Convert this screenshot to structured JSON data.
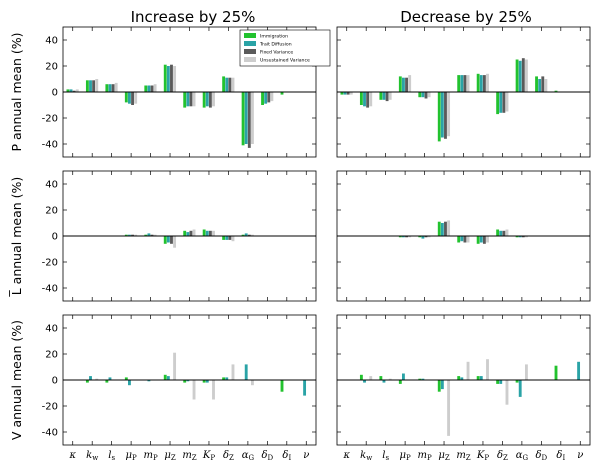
{
  "colors": {
    "Immigration": "#22c22e",
    "Trait Diffusion": "#2aa3a6",
    "Fixed Variance": "#5a5a5a",
    "Unsustained Variance": "#cdcdcd"
  },
  "chart_data": {
    "type": "bar",
    "column_titles": [
      "Increase by 25%",
      "Decrease by 25%"
    ],
    "row_ylabels": [
      "P annual mean (%)",
      "L̅ annual mean (%)",
      "V annual mean (%)"
    ],
    "ylim": [
      -50,
      50
    ],
    "yticks": [
      40,
      20,
      0,
      -20,
      -40
    ],
    "categories": [
      "κ",
      "kw",
      "ls",
      "μP",
      "mP",
      "μZ",
      "mZ",
      "KP",
      "δZ",
      "αG",
      "δD",
      "δI",
      "ν"
    ],
    "x_tick_labels": [
      {
        "base": "κ",
        "sub": ""
      },
      {
        "base": "k",
        "sub": "w"
      },
      {
        "base": "l",
        "sub": "s"
      },
      {
        "base": "μ",
        "sub": "P"
      },
      {
        "base": "m",
        "sub": "P"
      },
      {
        "base": "μ",
        "sub": "Z"
      },
      {
        "base": "m",
        "sub": "Z"
      },
      {
        "base": "K",
        "sub": "P"
      },
      {
        "base": "δ",
        "sub": "Z"
      },
      {
        "base": "α",
        "sub": "G"
      },
      {
        "base": "δ",
        "sub": "D"
      },
      {
        "base": "δ",
        "sub": "I"
      },
      {
        "base": "ν",
        "sub": ""
      }
    ],
    "legend": {
      "placement": "top-right of top-left panel",
      "entries": [
        "Immigration",
        "Trait Diffusion",
        "Fixed Variance",
        "Unsustained Variance"
      ]
    },
    "panels": [
      {
        "row": 0,
        "col": 0,
        "series": [
          {
            "name": "Immigration",
            "values": [
              2,
              9,
              6,
              -8,
              5,
              21,
              -12,
              -12,
              12,
              -41,
              -10,
              -2,
              0
            ]
          },
          {
            "name": "Trait Diffusion",
            "values": [
              2,
              9,
              6,
              -9,
              5,
              20,
              -11,
              -11,
              11,
              -40,
              -9,
              0,
              0
            ]
          },
          {
            "name": "Fixed Variance",
            "values": [
              1,
              9,
              6,
              -10,
              5,
              21,
              -11,
              -12,
              11,
              -43,
              -8,
              0,
              0
            ]
          },
          {
            "name": "Unsustained Variance",
            "values": [
              2,
              10,
              7,
              -9,
              6,
              20,
              -11,
              -11,
              11,
              -40,
              -7,
              0,
              0
            ]
          }
        ]
      },
      {
        "row": 0,
        "col": 1,
        "series": [
          {
            "name": "Immigration",
            "values": [
              -2,
              -10,
              -6,
              12,
              -4,
              -38,
              13,
              14,
              -17,
              25,
              12,
              1,
              0
            ]
          },
          {
            "name": "Trait Diffusion",
            "values": [
              -2,
              -11,
              -6,
              11,
              -4,
              -35,
              13,
              13,
              -16,
              24,
              10,
              0,
              0
            ]
          },
          {
            "name": "Fixed Variance",
            "values": [
              -2,
              -12,
              -7,
              11,
              -5,
              -36,
              13,
              13,
              -16,
              26,
              12,
              0,
              0
            ]
          },
          {
            "name": "Unsustained Variance",
            "values": [
              -2,
              -11,
              -6,
              13,
              -4,
              -34,
              13,
              14,
              -15,
              25,
              10,
              0,
              0
            ]
          }
        ]
      },
      {
        "row": 1,
        "col": 0,
        "series": [
          {
            "name": "Immigration",
            "values": [
              0,
              0,
              0,
              1,
              1,
              -6,
              4,
              5,
              -3,
              1,
              0,
              0,
              0
            ]
          },
          {
            "name": "Trait Diffusion",
            "values": [
              0,
              0,
              0,
              1,
              2,
              -5,
              3,
              4,
              -3,
              2,
              0,
              0,
              0
            ]
          },
          {
            "name": "Fixed Variance",
            "values": [
              0,
              0,
              0,
              1,
              1,
              -6,
              4,
              4,
              -3,
              1,
              0,
              0,
              0
            ]
          },
          {
            "name": "Unsustained Variance",
            "values": [
              0,
              0,
              0,
              1,
              1,
              -9,
              5,
              4,
              -4,
              1,
              0,
              0,
              0
            ]
          }
        ]
      },
      {
        "row": 1,
        "col": 1,
        "series": [
          {
            "name": "Immigration",
            "values": [
              0,
              0,
              0,
              -1,
              -1,
              11,
              -5,
              -6,
              5,
              -1,
              0,
              0,
              0
            ]
          },
          {
            "name": "Trait Diffusion",
            "values": [
              0,
              0,
              0,
              -1,
              -2,
              10,
              -4,
              -5,
              4,
              -1,
              0,
              0,
              0
            ]
          },
          {
            "name": "Fixed Variance",
            "values": [
              0,
              0,
              0,
              -1,
              -1,
              11,
              -5,
              -6,
              4,
              -1,
              0,
              0,
              0
            ]
          },
          {
            "name": "Unsustained Variance",
            "values": [
              0,
              0,
              0,
              -1,
              -1,
              12,
              -5,
              -5,
              5,
              -1,
              0,
              0,
              0
            ]
          }
        ]
      },
      {
        "row": 2,
        "col": 0,
        "series": [
          {
            "name": "Immigration",
            "values": [
              0,
              -2,
              -2,
              2,
              0,
              4,
              -2,
              -2,
              2,
              0,
              0,
              -9,
              0
            ]
          },
          {
            "name": "Trait Diffusion",
            "values": [
              0,
              3,
              2,
              -4,
              -1,
              3,
              -1,
              -2,
              2,
              12,
              0,
              0,
              -12
            ]
          },
          {
            "name": "Fixed Variance",
            "values": [
              0,
              0,
              0,
              0,
              0,
              0,
              0,
              0,
              0,
              0,
              0,
              0,
              0
            ]
          },
          {
            "name": "Unsustained Variance",
            "values": [
              0,
              1,
              0,
              0,
              0,
              21,
              -15,
              -15,
              12,
              -4,
              0,
              0,
              0
            ]
          }
        ]
      },
      {
        "row": 2,
        "col": 1,
        "series": [
          {
            "name": "Immigration",
            "values": [
              0,
              4,
              3,
              -3,
              1,
              -9,
              3,
              3,
              -3,
              -2,
              0,
              11,
              0
            ]
          },
          {
            "name": "Trait Diffusion",
            "values": [
              0,
              -2,
              -2,
              5,
              1,
              -7,
              2,
              3,
              -3,
              -13,
              0,
              0,
              14
            ]
          },
          {
            "name": "Fixed Variance",
            "values": [
              0,
              0,
              0,
              0,
              0,
              0,
              0,
              0,
              0,
              0,
              0,
              0,
              0
            ]
          },
          {
            "name": "Unsustained Variance",
            "values": [
              0,
              3,
              1,
              0,
              0,
              -43,
              14,
              16,
              -19,
              12,
              0,
              0,
              0
            ]
          }
        ]
      }
    ]
  }
}
